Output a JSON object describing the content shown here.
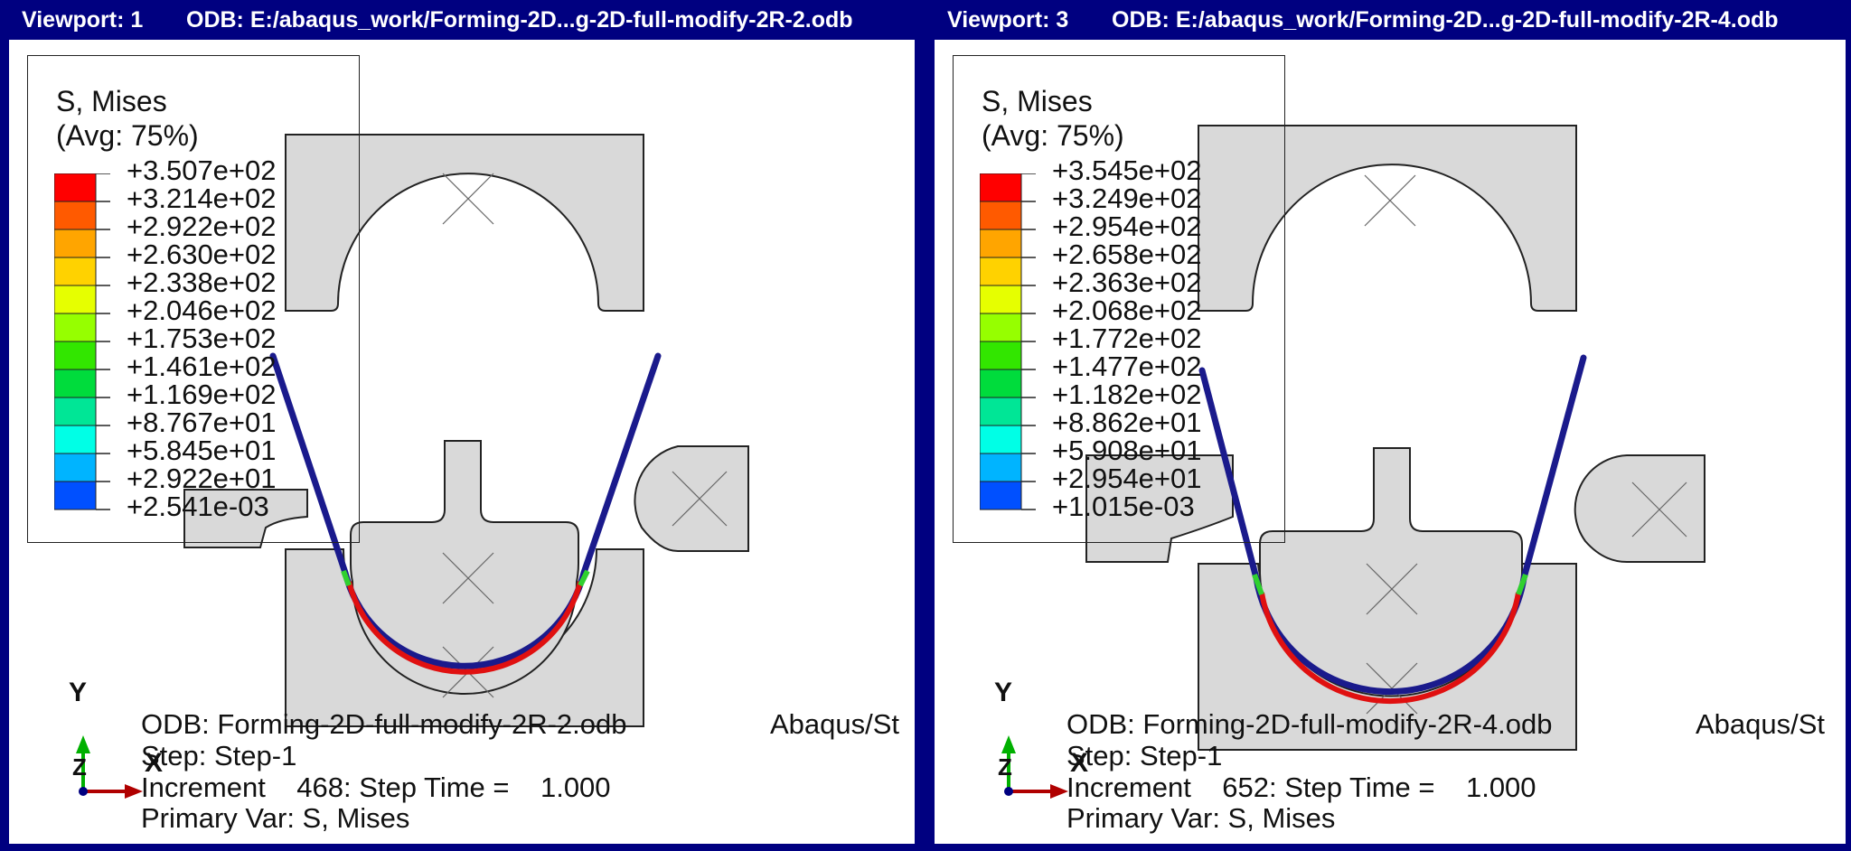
{
  "viewports": [
    {
      "title_number": "Viewport: 1",
      "title_odb": "ODB: E:/abaqus_work/Forming-2D...g-2D-full-modify-2R-2.odb",
      "legend": {
        "title": "S, Mises",
        "subtitle": "(Avg: 75%)",
        "labels": [
          "+3.507e+02",
          "+3.214e+02",
          "+2.922e+02",
          "+2.630e+02",
          "+2.338e+02",
          "+2.046e+02",
          "+1.753e+02",
          "+1.461e+02",
          "+1.169e+02",
          "+8.767e+01",
          "+5.845e+01",
          "+2.922e+01",
          "+2.541e-03"
        ]
      },
      "triad": {
        "y": "Y",
        "z": "Z",
        "x": "X"
      },
      "info": {
        "odb": "ODB: Forming-2D-full-modify-2R-2.odb",
        "solver": "Abaqus/St",
        "step": "Step: Step-1",
        "increment": "Increment    468: Step Time =    1.000",
        "primary_var": "Primary Var: S, Mises"
      }
    },
    {
      "title_number": "Viewport: 3",
      "title_odb": "ODB: E:/abaqus_work/Forming-2D...g-2D-full-modify-2R-4.odb",
      "legend": {
        "title": "S, Mises",
        "subtitle": "(Avg: 75%)",
        "labels": [
          "+3.545e+02",
          "+3.249e+02",
          "+2.954e+02",
          "+2.658e+02",
          "+2.363e+02",
          "+2.068e+02",
          "+1.772e+02",
          "+1.477e+02",
          "+1.182e+02",
          "+8.862e+01",
          "+5.908e+01",
          "+2.954e+01",
          "+1.015e-03"
        ]
      },
      "triad": {
        "y": "Y",
        "z": "Z",
        "x": "X"
      },
      "info": {
        "odb": "ODB: Forming-2D-full-modify-2R-4.odb",
        "solver": "Abaqus/St",
        "step": "Step: Step-1",
        "increment": "Increment    652: Step Time =    1.000",
        "primary_var": "Primary Var: S, Mises"
      }
    }
  ],
  "colors": {
    "frame": "#000080",
    "tool_fill": "#d9d9d9",
    "sheet": "#1a1a8c",
    "contour": [
      "#ff0000",
      "#ff5a00",
      "#ffa500",
      "#ffd200",
      "#e6ff00",
      "#96ff00",
      "#32e600",
      "#00dc3c",
      "#00e696",
      "#00ffe6",
      "#00b4ff",
      "#0050ff",
      "#0000ff"
    ]
  }
}
